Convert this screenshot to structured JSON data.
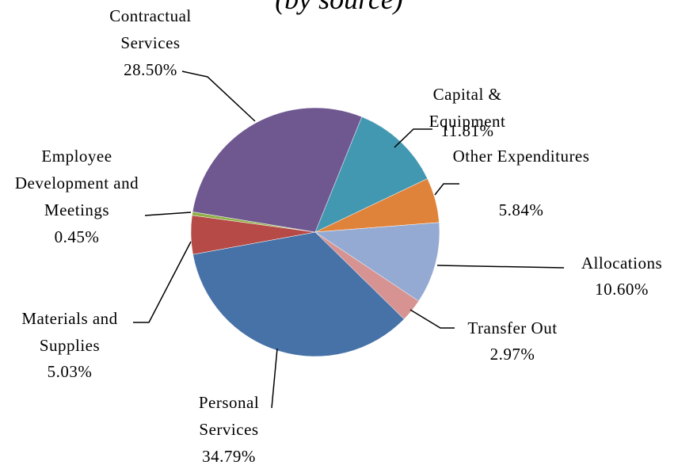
{
  "chart_data": {
    "type": "pie",
    "title": "(by source)",
    "categories": [
      "Capital & Equipment",
      "Other Expenditures",
      "Allocations",
      "Transfer Out",
      "Personal Services",
      "Materials and Supplies",
      "Employee Development and Meetings",
      "Contractual Services"
    ],
    "values": [
      11.81,
      5.84,
      10.6,
      2.97,
      34.79,
      5.03,
      0.45,
      28.5
    ],
    "value_labels": [
      "11.81%",
      "5.84%",
      "10.60%",
      "2.97%",
      "34.79%",
      "5.03%",
      "0.45%",
      "28.50%"
    ],
    "colors": [
      "#4398b1",
      "#e0833a",
      "#94aad3",
      "#d69391",
      "#4672a8",
      "#b64a47",
      "#8fb046",
      "#6f5890"
    ]
  }
}
